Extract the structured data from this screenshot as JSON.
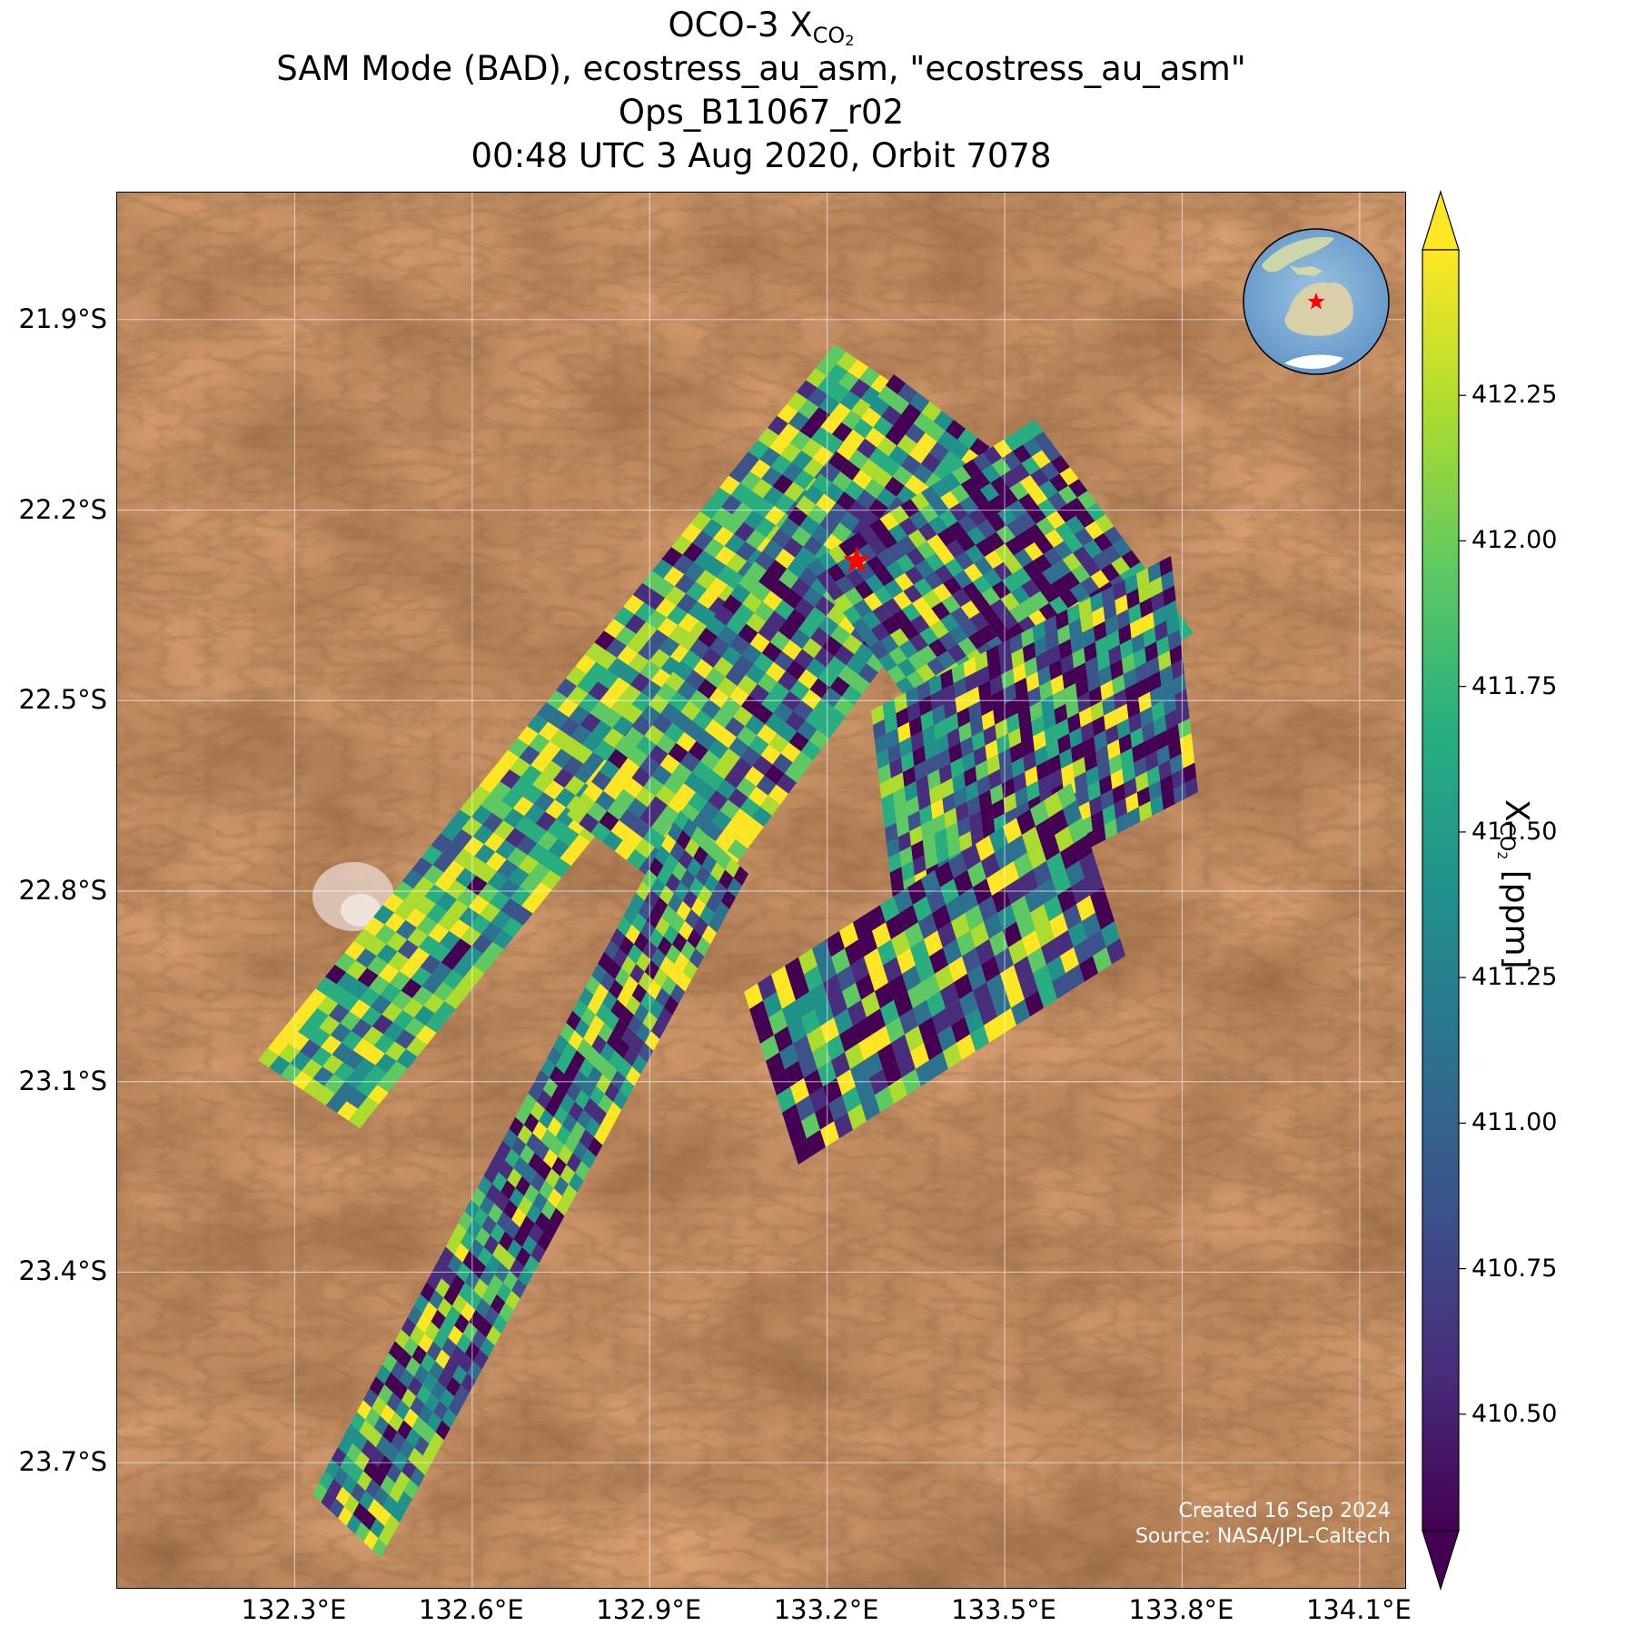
{
  "title": {
    "line1_main": "OCO-3 X",
    "line1_sub": "CO",
    "line1_sub2": "2",
    "line2": "SAM Mode (BAD), ecostress_au_asm, \"ecostress_au_asm\"",
    "line3": "Ops_B11067_r02",
    "line4": "00:48 UTC 3 Aug 2020, Orbit 7078"
  },
  "map": {
    "lat_ticks": [
      "21.9°S",
      "22.2°S",
      "22.5°S",
      "22.8°S",
      "23.1°S",
      "23.4°S",
      "23.7°S"
    ],
    "lon_ticks": [
      "132.3°E",
      "132.6°E",
      "132.9°E",
      "133.2°E",
      "133.5°E",
      "133.8°E",
      "134.1°E"
    ],
    "lat_values": [
      -21.9,
      -22.2,
      -22.5,
      -22.8,
      -23.1,
      -23.4,
      -23.7
    ],
    "lon_values": [
      132.3,
      132.6,
      132.9,
      133.2,
      133.5,
      133.8,
      134.1
    ],
    "lon_range": [
      132.0,
      134.18
    ],
    "lat_range": [
      -23.9,
      -21.7
    ],
    "background": "satellite imagery, arid desert terrain",
    "target_marker": {
      "icon": "red-star-icon",
      "lat": -22.28,
      "lon": 133.25,
      "color": "#ff0000"
    },
    "inset_globe": {
      "icon": "globe-icon",
      "region": "Australia",
      "marker_color": "#ff0000"
    },
    "credit_line1": "Created 16 Sep 2024",
    "credit_line2": "Source: NASA/JPL-Caltech"
  },
  "colorbar": {
    "colormap": "viridis",
    "min": 410.3,
    "max": 412.5,
    "extend": "both",
    "ticks": [
      "410.50",
      "410.75",
      "411.00",
      "411.25",
      "411.50",
      "411.75",
      "412.00",
      "412.25"
    ],
    "tick_values": [
      410.5,
      410.75,
      411.0,
      411.25,
      411.5,
      411.75,
      412.0,
      412.25
    ],
    "label_main": "X",
    "label_sub": "CO",
    "label_sub2": "2",
    "label_unit": " [ppm]"
  }
}
